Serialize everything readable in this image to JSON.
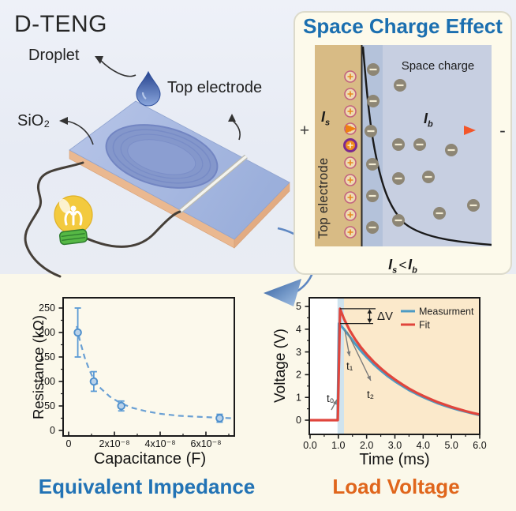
{
  "scene": {
    "title": "D-TENG",
    "droplet_label": "Droplet",
    "sio2_label": "SiO₂",
    "top_electrode_label": "Top electrode"
  },
  "panel": {
    "title": "Space Charge Effect",
    "space_charge_label": "Space charge",
    "electrode_label": "Top electrode",
    "plus": "+",
    "minus": "-",
    "less_than": "<",
    "i_s": {
      "base": "I",
      "sub": "s"
    },
    "i_b": {
      "base": "I",
      "sub": "b"
    }
  },
  "colors": {
    "panel_title_blue": "#1b6fb0",
    "caption_blue": "#2273b5",
    "caption_orange": "#e0661c",
    "electrode_tan": "#d8bb85",
    "dielectric_blue_inner": "#b4c2da",
    "dielectric_blue_outer": "#c7cfe1",
    "measurement_blue": "#4d9bc4",
    "fit_red": "#e0453c",
    "scatter_blue": "#5b9bd5",
    "highlight_band": "#cfe3ee",
    "shaded_region": "#fbe9cb",
    "plate_blue": "#a9bbe1",
    "copper_layer": "#eab890",
    "bulb_yellow": "#f3ca3e"
  },
  "chart_data": [
    {
      "type": "scatter",
      "title": "Equivalent Impedance",
      "xlabel": "Capacitance (F)",
      "ylabel": "Resistance (kΩ)",
      "xlim": [
        0,
        7.3e-08
      ],
      "ylim": [
        -15,
        265
      ],
      "grid": false,
      "xticks": [
        {
          "value": 0,
          "label": "0"
        },
        {
          "value": 2e-08,
          "label": "2x10⁻⁸"
        },
        {
          "value": 4e-08,
          "label": "4x10⁻⁸"
        },
        {
          "value": 6e-08,
          "label": "6x10⁻⁸"
        }
      ],
      "yticks": [
        {
          "value": 0,
          "label": "0"
        },
        {
          "value": 50,
          "label": "50"
        },
        {
          "value": 100,
          "label": "100"
        },
        {
          "value": 150,
          "label": "150"
        },
        {
          "value": 200,
          "label": "200"
        },
        {
          "value": 250,
          "label": "250"
        }
      ],
      "points": [
        {
          "x": 4e-09,
          "y": 200,
          "yerr": 50
        },
        {
          "x": 1.1e-08,
          "y": 100,
          "yerr": 20
        },
        {
          "x": 2.3e-08,
          "y": 50,
          "yerr": 10
        },
        {
          "x": 6.6e-08,
          "y": 25,
          "yerr": 8
        }
      ],
      "fit_style": "dashed",
      "fit_points": [
        [
          3.5e-09,
          213
        ],
        [
          5e-09,
          182
        ],
        [
          7e-09,
          149
        ],
        [
          9e-09,
          124
        ],
        [
          1.1e-08,
          104
        ],
        [
          1.4e-08,
          86
        ],
        [
          1.8e-08,
          69
        ],
        [
          2.3e-08,
          55
        ],
        [
          2.8e-08,
          46
        ],
        [
          3.4e-08,
          39
        ],
        [
          4e-08,
          34
        ],
        [
          4.8e-08,
          30
        ],
        [
          5.6e-08,
          28
        ],
        [
          6.6e-08,
          26
        ],
        [
          7.1e-08,
          25
        ]
      ]
    },
    {
      "type": "line",
      "title": "Load Voltage",
      "xlabel": "Time (ms)",
      "ylabel": "Voltage (V)",
      "xlim": [
        0,
        6
      ],
      "ylim": [
        -0.55,
        5.45
      ],
      "grid": false,
      "legend_position": "top-right",
      "highlight_band_x": [
        0.97,
        1.2
      ],
      "shaded_region_x": [
        1.2,
        6
      ],
      "xticks": [
        {
          "value": 0,
          "label": "0.0"
        },
        {
          "value": 1,
          "label": "1.0"
        },
        {
          "value": 2,
          "label": "2.0"
        },
        {
          "value": 3,
          "label": "3.0"
        },
        {
          "value": 4,
          "label": "4.0"
        },
        {
          "value": 5,
          "label": "5.0"
        },
        {
          "value": 6,
          "label": "6.0"
        }
      ],
      "yticks": [
        {
          "value": 0,
          "label": "0"
        },
        {
          "value": 1,
          "label": "1"
        },
        {
          "value": 2,
          "label": "2"
        },
        {
          "value": 3,
          "label": "3"
        },
        {
          "value": 4,
          "label": "4"
        },
        {
          "value": 5,
          "label": "5"
        }
      ],
      "annotations": {
        "delta_v": "ΔV",
        "t0": "t₀",
        "t1": "t₁",
        "t2": "t₂"
      },
      "series": [
        {
          "name": "Measurment",
          "color": "#4d9bc4",
          "points": [
            [
              0,
              0
            ],
            [
              0.97,
              0
            ],
            [
              1.02,
              4.25
            ],
            [
              1.2,
              4.0
            ],
            [
              1.4,
              3.68
            ],
            [
              1.6,
              3.35
            ],
            [
              1.8,
              3.04
            ],
            [
              2.0,
              2.77
            ],
            [
              2.25,
              2.46
            ],
            [
              2.5,
              2.18
            ],
            [
              2.75,
              1.93
            ],
            [
              3.0,
              1.71
            ],
            [
              3.25,
              1.51
            ],
            [
              3.5,
              1.32
            ],
            [
              3.75,
              1.16
            ],
            [
              4.0,
              1.01
            ],
            [
              4.25,
              0.88
            ],
            [
              4.5,
              0.75
            ],
            [
              4.75,
              0.64
            ],
            [
              5.0,
              0.54
            ],
            [
              5.25,
              0.45
            ],
            [
              5.5,
              0.37
            ],
            [
              5.75,
              0.29
            ],
            [
              6.0,
              0.22
            ]
          ]
        },
        {
          "name": "Fit",
          "color": "#e0453c",
          "points": [
            [
              0,
              0
            ],
            [
              0.98,
              0
            ],
            [
              1.06,
              4.9
            ],
            [
              1.2,
              4.45
            ],
            [
              1.4,
              3.95
            ],
            [
              1.6,
              3.55
            ],
            [
              1.8,
              3.2
            ],
            [
              2.0,
              2.9
            ],
            [
              2.25,
              2.57
            ],
            [
              2.5,
              2.28
            ],
            [
              2.75,
              2.02
            ],
            [
              3.0,
              1.79
            ],
            [
              3.25,
              1.58
            ],
            [
              3.5,
              1.39
            ],
            [
              3.75,
              1.22
            ],
            [
              4.0,
              1.07
            ],
            [
              4.25,
              0.93
            ],
            [
              4.5,
              0.8
            ],
            [
              4.75,
              0.69
            ],
            [
              5.0,
              0.58
            ],
            [
              5.25,
              0.49
            ],
            [
              5.5,
              0.4
            ],
            [
              5.75,
              0.32
            ],
            [
              6.0,
              0.25
            ]
          ]
        }
      ]
    }
  ]
}
